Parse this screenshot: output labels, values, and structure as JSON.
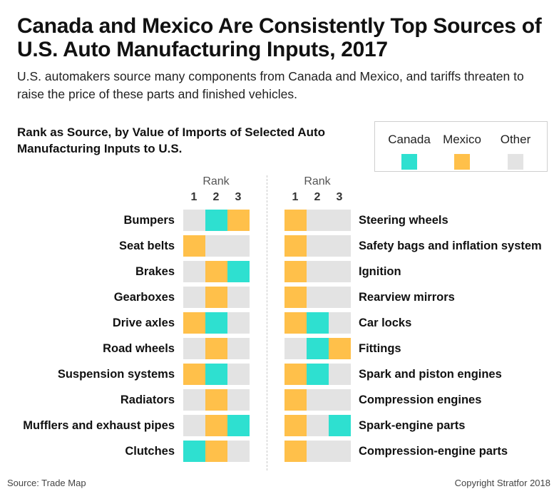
{
  "title": "Canada and Mexico Are Consistently Top Sources of U.S. Auto Manufacturing Inputs, 2017",
  "subtitle": "U.S. automakers source many components from Canada and Mexico, and tariffs threaten to raise the price of these parts and finished vehicles.",
  "chart_heading": "Rank as Source, by Value of Imports of Selected Auto Manufacturing Inputs to U.S.",
  "legend": {
    "items": [
      {
        "label": "Canada",
        "color": "#2ee0d0"
      },
      {
        "label": "Mexico",
        "color": "#ffc04a"
      },
      {
        "label": "Other",
        "color": "#e3e3e3"
      }
    ]
  },
  "rank_header": "Rank",
  "rank_numbers": [
    "1",
    "2",
    "3"
  ],
  "colors": {
    "Canada": "#2ee0d0",
    "Mexico": "#ffc04a",
    "Other": "#e3e3e3"
  },
  "chart_data": {
    "type": "table",
    "title": "Rank as Source, by Value of Imports of Selected Auto Manufacturing Inputs to U.S.",
    "columns": [
      "1",
      "2",
      "3"
    ],
    "left": [
      {
        "label": "Bumpers",
        "ranks": [
          "Other",
          "Canada",
          "Mexico"
        ]
      },
      {
        "label": "Seat belts",
        "ranks": [
          "Mexico",
          "Other",
          "Other"
        ]
      },
      {
        "label": "Brakes",
        "ranks": [
          "Other",
          "Mexico",
          "Canada"
        ]
      },
      {
        "label": "Gearboxes",
        "ranks": [
          "Other",
          "Mexico",
          "Other"
        ]
      },
      {
        "label": "Drive axles",
        "ranks": [
          "Mexico",
          "Canada",
          "Other"
        ]
      },
      {
        "label": "Road wheels",
        "ranks": [
          "Other",
          "Mexico",
          "Other"
        ]
      },
      {
        "label": "Suspension systems",
        "ranks": [
          "Mexico",
          "Canada",
          "Other"
        ]
      },
      {
        "label": "Radiators",
        "ranks": [
          "Other",
          "Mexico",
          "Other"
        ]
      },
      {
        "label": "Mufflers and exhaust pipes",
        "ranks": [
          "Other",
          "Mexico",
          "Canada"
        ]
      },
      {
        "label": "Clutches",
        "ranks": [
          "Canada",
          "Mexico",
          "Other"
        ]
      }
    ],
    "right": [
      {
        "label": "Steering wheels",
        "ranks": [
          "Mexico",
          "Other",
          "Other"
        ]
      },
      {
        "label": "Safety bags and inflation system",
        "ranks": [
          "Mexico",
          "Other",
          "Other"
        ]
      },
      {
        "label": "Ignition",
        "ranks": [
          "Mexico",
          "Other",
          "Other"
        ]
      },
      {
        "label": "Rearview mirrors",
        "ranks": [
          "Mexico",
          "Other",
          "Other"
        ]
      },
      {
        "label": "Car locks",
        "ranks": [
          "Mexico",
          "Canada",
          "Other"
        ]
      },
      {
        "label": "Fittings",
        "ranks": [
          "Other",
          "Canada",
          "Mexico"
        ]
      },
      {
        "label": "Spark and piston engines",
        "ranks": [
          "Mexico",
          "Canada",
          "Other"
        ]
      },
      {
        "label": "Compression engines",
        "ranks": [
          "Mexico",
          "Other",
          "Other"
        ]
      },
      {
        "label": "Spark-engine parts",
        "ranks": [
          "Mexico",
          "Other",
          "Canada"
        ]
      },
      {
        "label": "Compression-engine parts",
        "ranks": [
          "Mexico",
          "Other",
          "Other"
        ]
      }
    ]
  },
  "footer": {
    "source": "Source: Trade Map",
    "copyright": "Copyright Stratfor 2018"
  }
}
